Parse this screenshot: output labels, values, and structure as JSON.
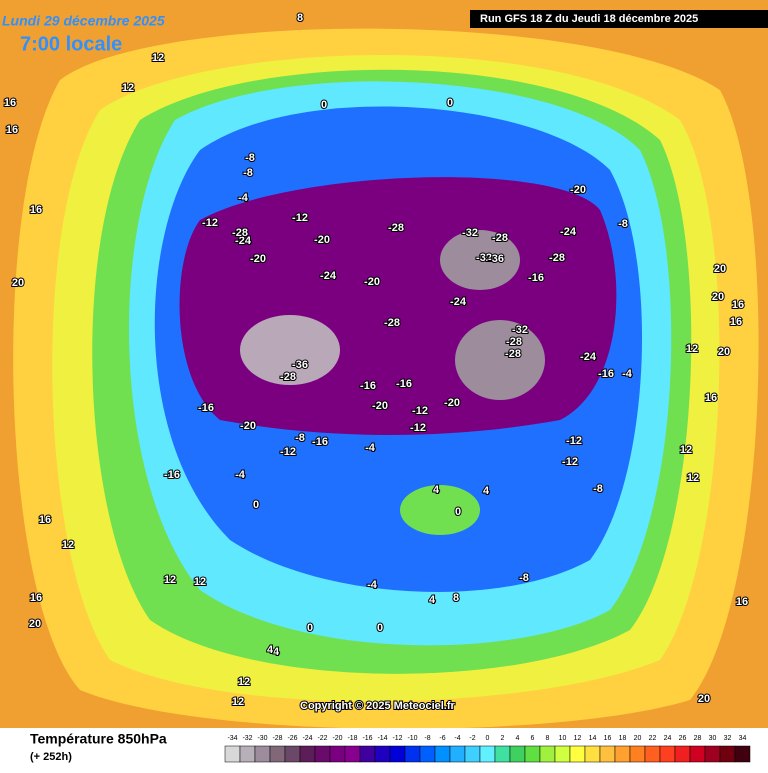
{
  "header": {
    "date": "Lundi 29 décembre 2025",
    "time": "7:00 locale",
    "run": "Run GFS 18 Z du Jeudi 18 décembre 2025"
  },
  "copyright": "Copyright © 2025 Meteociel.fr",
  "footer": {
    "title": "Température 850hPa",
    "lead": "(+ 252h)"
  },
  "legend": {
    "labels": [
      -34,
      -32,
      -30,
      -28,
      -26,
      -24,
      -22,
      -20,
      -18,
      -16,
      -14,
      -12,
      -10,
      -8,
      -6,
      -4,
      -2,
      0,
      2,
      4,
      6,
      8,
      10,
      12,
      14,
      16,
      18,
      20,
      22,
      24,
      26,
      28,
      30,
      32,
      34
    ],
    "colors": [
      "#d8d8d8",
      "#b8b0b8",
      "#9c8c9c",
      "#806878",
      "#6c4868",
      "#5c1e58",
      "#6a0a6a",
      "#7a0080",
      "#880090",
      "#4000a0",
      "#2000c0",
      "#0000d8",
      "#0030f0",
      "#0060ff",
      "#0090ff",
      "#20b0ff",
      "#40d0ff",
      "#60f0ff",
      "#40e0a0",
      "#40d060",
      "#60e040",
      "#a0f040",
      "#d0ff40",
      "#ffff40",
      "#ffe040",
      "#ffc040",
      "#ffa030",
      "#ff8020",
      "#ff6020",
      "#ff4020",
      "#f02020",
      "#d00020",
      "#a00020",
      "#700010",
      "#400010"
    ]
  },
  "map_labels": [
    8,
    12,
    16,
    16,
    12,
    20,
    16,
    16,
    12,
    12,
    16,
    20,
    -8,
    -8,
    -4,
    -12,
    -24,
    -28,
    -20,
    -12,
    -20,
    -24,
    -20,
    -28,
    -28,
    -32,
    -32,
    -28,
    -36,
    -28,
    -24,
    -20,
    -16,
    -24,
    -28,
    -36,
    -28,
    -16,
    -20,
    -16,
    -12,
    -20,
    -32,
    -28,
    -24,
    -16,
    -8,
    -16,
    -20,
    -16,
    -12,
    -4,
    -8,
    -12,
    -12,
    -12,
    -8,
    -4,
    0,
    0,
    4,
    4,
    0,
    -4,
    -8,
    0,
    4,
    12,
    12,
    16,
    16,
    12,
    12,
    16,
    20,
    20,
    20,
    20,
    16,
    12,
    12,
    -4,
    0,
    4,
    8,
    0,
    4,
    -16
  ]
}
